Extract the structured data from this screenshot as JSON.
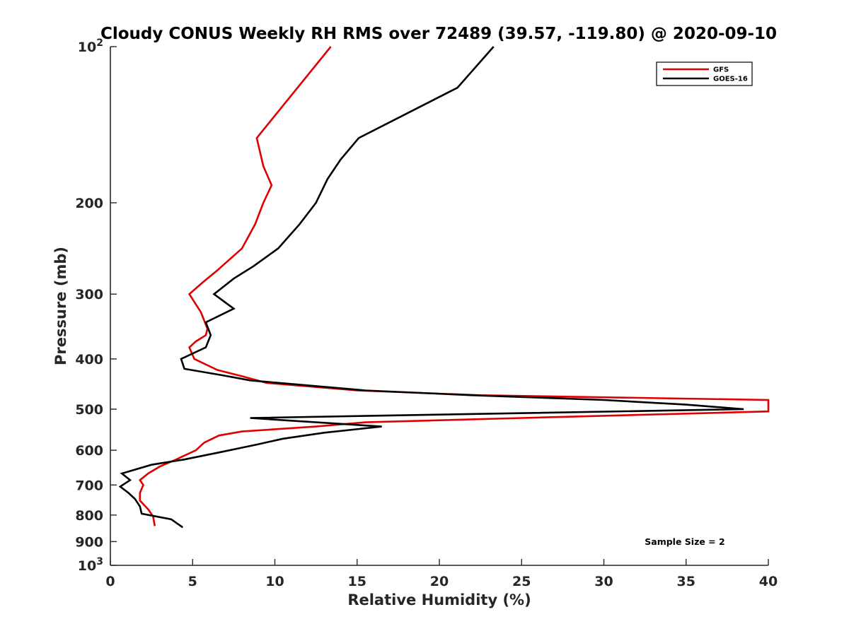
{
  "chart_data": {
    "type": "line",
    "title": "Cloudy CONUS Weekly RH RMS over 72489 (39.57, -119.80) @ 2020-09-10",
    "xlabel": "Relative Humidity (%)",
    "ylabel": "Pressure (mb)",
    "xlim": [
      0,
      40
    ],
    "ylim": [
      100,
      1000
    ],
    "y_scale": "log",
    "y_reversed": true,
    "x_ticks": [
      "0",
      "5",
      "10",
      "15",
      "20",
      "25",
      "30",
      "35",
      "40"
    ],
    "y_ticks": [
      {
        "value": 100,
        "label": "10",
        "sup": "2"
      },
      {
        "value": 200,
        "label": "200",
        "sup": ""
      },
      {
        "value": 300,
        "label": "300",
        "sup": ""
      },
      {
        "value": 400,
        "label": "400",
        "sup": ""
      },
      {
        "value": 500,
        "label": "500",
        "sup": ""
      },
      {
        "value": 600,
        "label": "600",
        "sup": ""
      },
      {
        "value": 700,
        "label": "700",
        "sup": ""
      },
      {
        "value": 800,
        "label": "800",
        "sup": ""
      },
      {
        "value": 900,
        "label": "900",
        "sup": ""
      },
      {
        "value": 1000,
        "label": "10",
        "sup": "3"
      }
    ],
    "grid": false,
    "legend_position": "top-right",
    "series": [
      {
        "name": "GFS",
        "color": "#e00000",
        "points": [
          [
            13.4,
            100
          ],
          [
            8.9,
            150
          ],
          [
            9.3,
            170
          ],
          [
            9.8,
            185
          ],
          [
            9.3,
            200
          ],
          [
            8.8,
            220
          ],
          [
            8.0,
            245
          ],
          [
            6.5,
            270
          ],
          [
            5.6,
            285
          ],
          [
            4.8,
            300
          ],
          [
            5.5,
            325
          ],
          [
            5.9,
            350
          ],
          [
            5.8,
            360
          ],
          [
            5.2,
            370
          ],
          [
            4.8,
            380
          ],
          [
            5.1,
            400
          ],
          [
            6.5,
            420
          ],
          [
            8.0,
            432
          ],
          [
            9.5,
            445
          ],
          [
            15.0,
            460
          ],
          [
            22.5,
            470
          ],
          [
            40.0,
            480
          ],
          [
            40.0,
            505
          ],
          [
            25.0,
            520
          ],
          [
            15.5,
            530
          ],
          [
            12.5,
            540
          ],
          [
            8.0,
            552
          ],
          [
            6.6,
            562
          ],
          [
            5.7,
            580
          ],
          [
            5.2,
            600
          ],
          [
            4.0,
            625
          ],
          [
            3.0,
            645
          ],
          [
            2.3,
            665
          ],
          [
            1.8,
            685
          ],
          [
            2.0,
            700
          ],
          [
            1.8,
            725
          ],
          [
            1.8,
            750
          ],
          [
            2.3,
            780
          ],
          [
            2.6,
            805
          ],
          [
            2.7,
            840
          ]
        ]
      },
      {
        "name": "GOES-16",
        "color": "#000000",
        "points": [
          [
            23.3,
            100
          ],
          [
            21.1,
            120
          ],
          [
            15.1,
            150
          ],
          [
            14.0,
            165
          ],
          [
            13.2,
            180
          ],
          [
            12.5,
            200
          ],
          [
            11.5,
            220
          ],
          [
            10.2,
            245
          ],
          [
            8.7,
            265
          ],
          [
            7.5,
            280
          ],
          [
            6.3,
            300
          ],
          [
            7.5,
            320
          ],
          [
            5.8,
            340
          ],
          [
            6.1,
            360
          ],
          [
            5.8,
            380
          ],
          [
            4.3,
            400
          ],
          [
            4.5,
            418
          ],
          [
            6.8,
            430
          ],
          [
            8.5,
            440
          ],
          [
            15.5,
            460
          ],
          [
            22.0,
            470
          ],
          [
            30.0,
            480
          ],
          [
            35.0,
            490
          ],
          [
            38.5,
            500
          ],
          [
            8.5,
            520
          ],
          [
            16.5,
            540
          ],
          [
            13.0,
            555
          ],
          [
            10.5,
            570
          ],
          [
            8.9,
            585
          ],
          [
            6.7,
            605
          ],
          [
            4.5,
            625
          ],
          [
            2.5,
            640
          ],
          [
            0.7,
            665
          ],
          [
            1.2,
            685
          ],
          [
            0.6,
            705
          ],
          [
            1.1,
            725
          ],
          [
            1.5,
            745
          ],
          [
            1.8,
            770
          ],
          [
            1.9,
            795
          ],
          [
            3.7,
            815
          ],
          [
            4.4,
            845
          ]
        ]
      }
    ],
    "annotations": [
      {
        "text": "Sample Size = 2",
        "position": "bottom-right"
      }
    ]
  }
}
